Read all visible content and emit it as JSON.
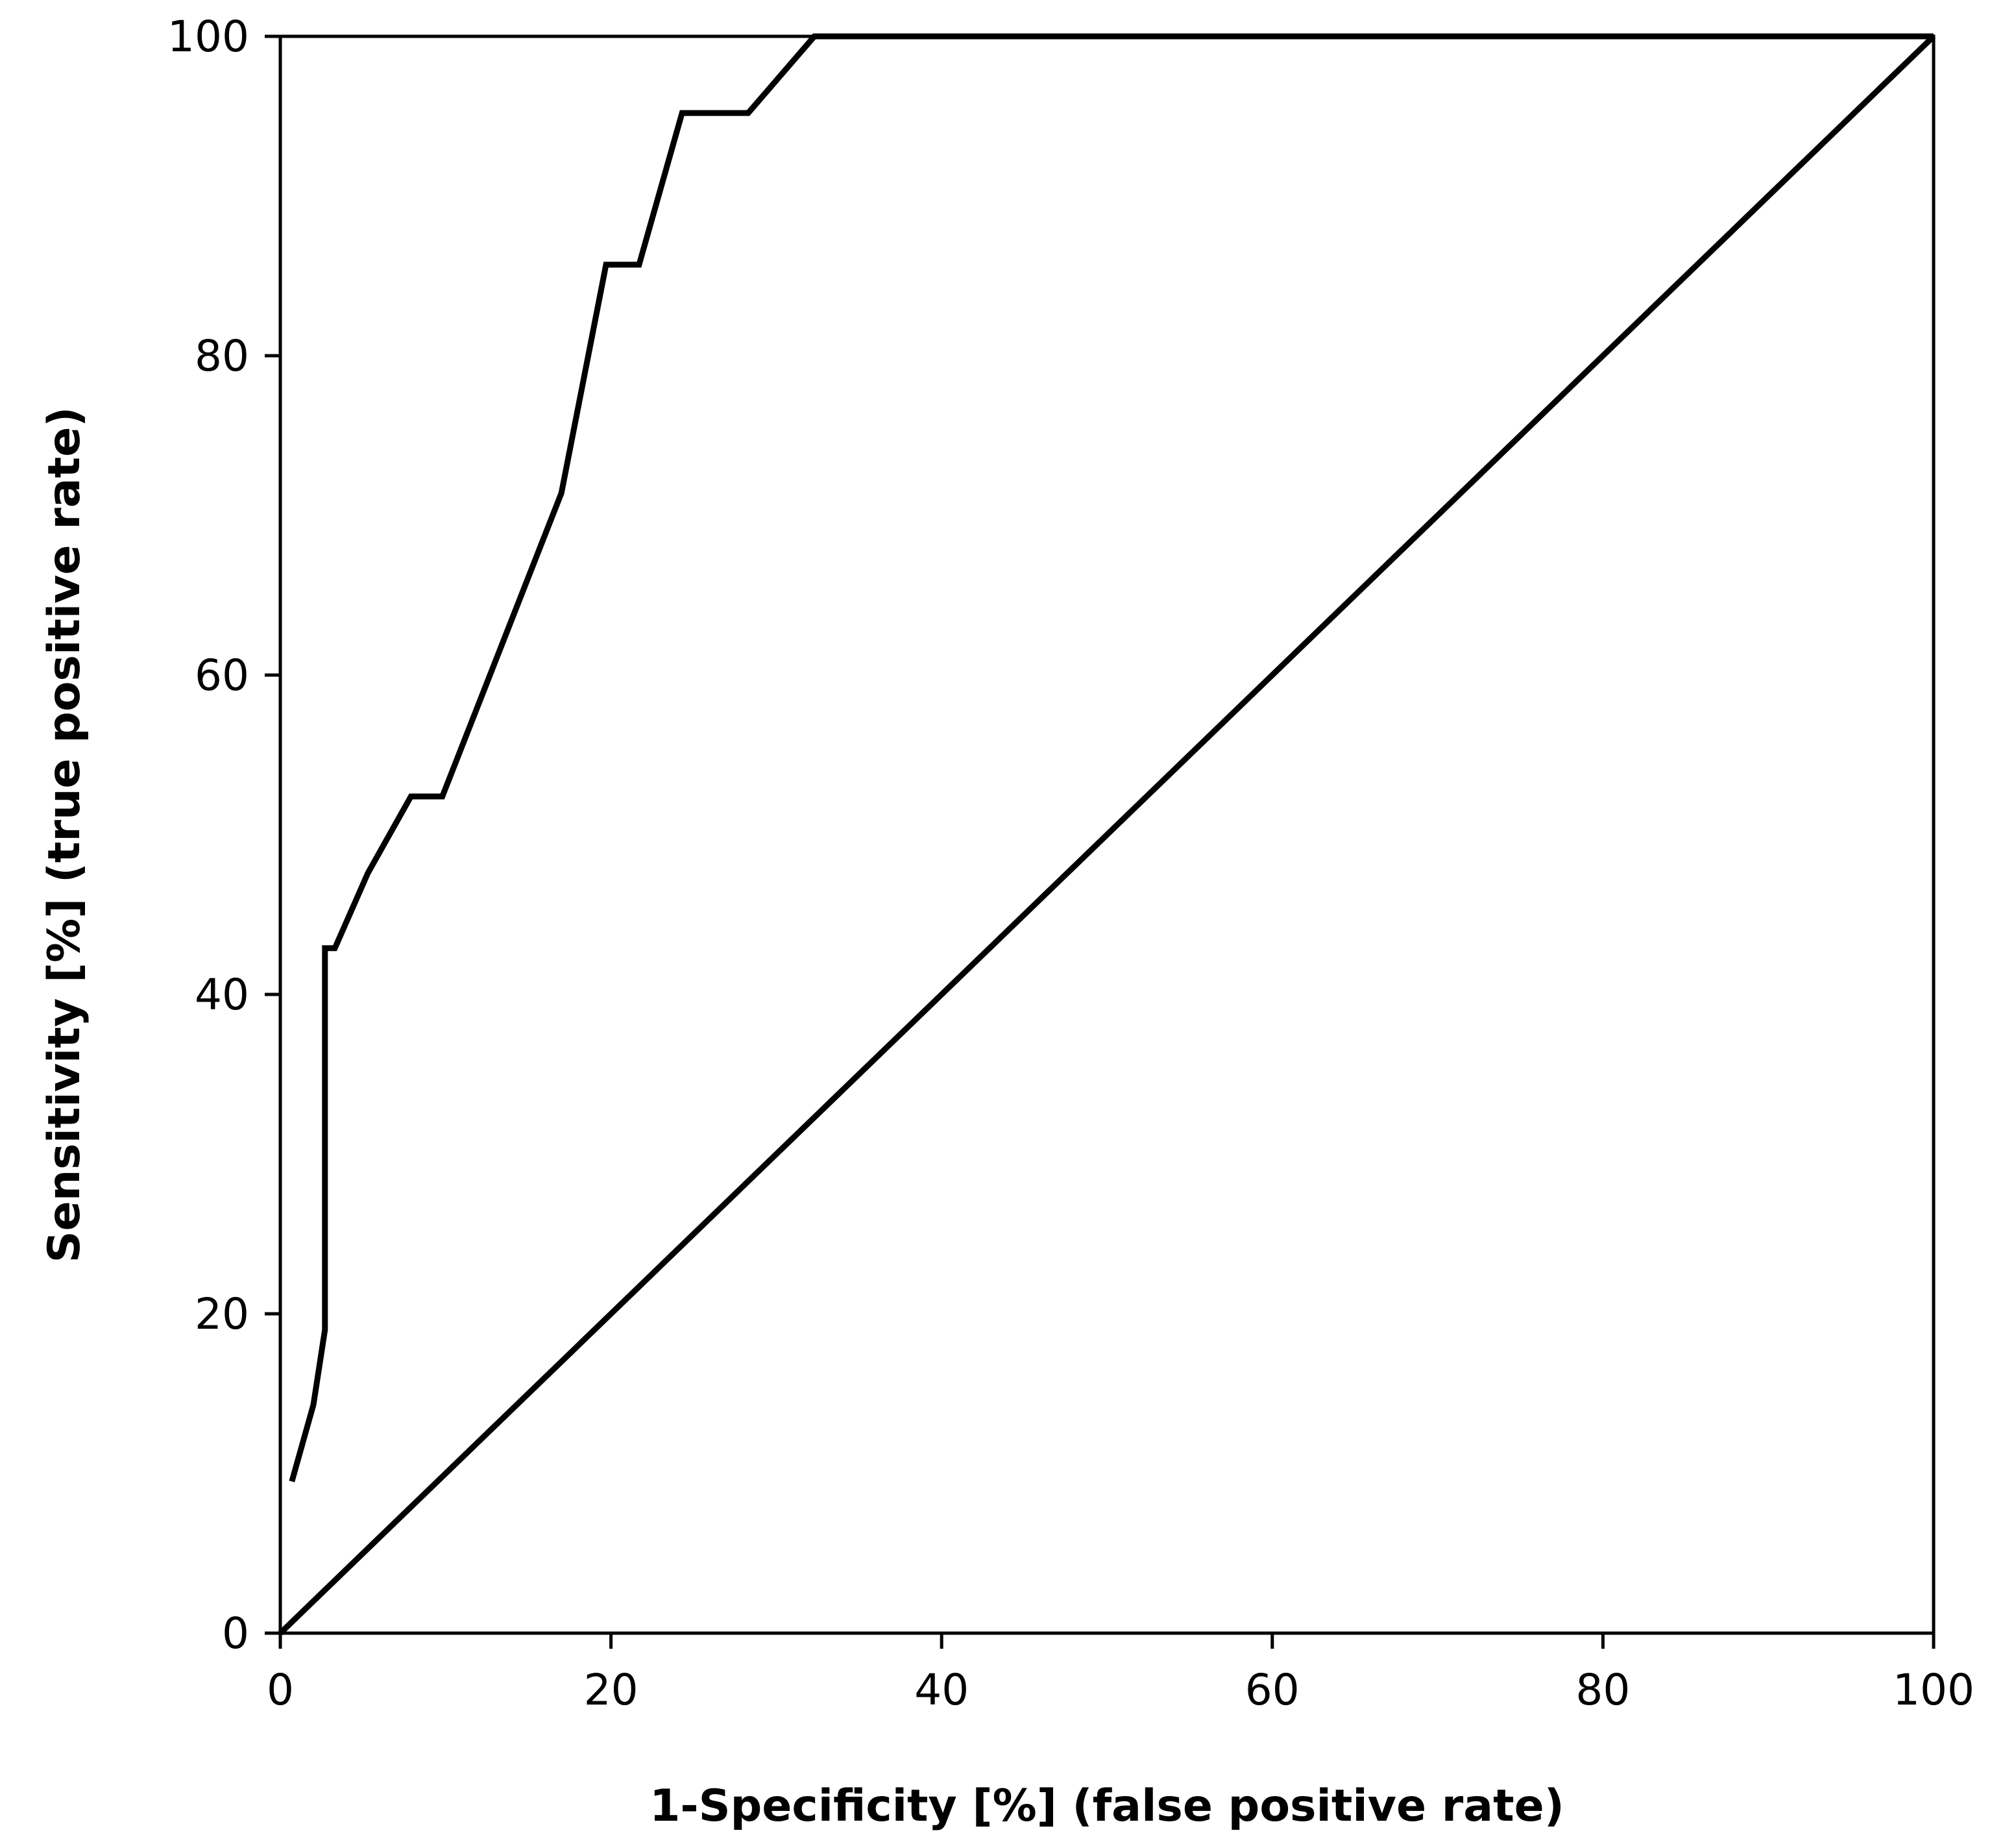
{
  "chart_data": {
    "type": "line",
    "title": "",
    "xlabel": "1-Specificity [%] (false positive rate)",
    "ylabel": "Sensitivity [%] (true positive rate)",
    "xlim": [
      0,
      100
    ],
    "ylim": [
      0,
      100
    ],
    "x_ticks": [
      0,
      20,
      40,
      60,
      80,
      100
    ],
    "y_ticks": [
      0,
      20,
      40,
      60,
      80,
      100
    ],
    "x_tick_labels": [
      "0",
      "20",
      "40",
      "60",
      "80",
      "100"
    ],
    "y_tick_labels": [
      "0",
      "20",
      "40",
      "60",
      "80",
      "100"
    ],
    "grid": false,
    "legend": "none",
    "line_color": "#000000",
    "series": [
      {
        "x": [
          0.7,
          2.0,
          2.7,
          2.7,
          3.3,
          5.3,
          7.9,
          9.8,
          17.0,
          19.7,
          21.7,
          24.3,
          28.3,
          32.3,
          100
        ],
        "y": [
          9.5,
          14.3,
          19.0,
          42.9,
          42.9,
          47.6,
          52.4,
          52.4,
          71.4,
          85.7,
          85.7,
          95.2,
          95.2,
          100,
          100
        ]
      },
      {
        "x": [
          0,
          100
        ],
        "y": [
          0,
          100
        ]
      }
    ]
  }
}
